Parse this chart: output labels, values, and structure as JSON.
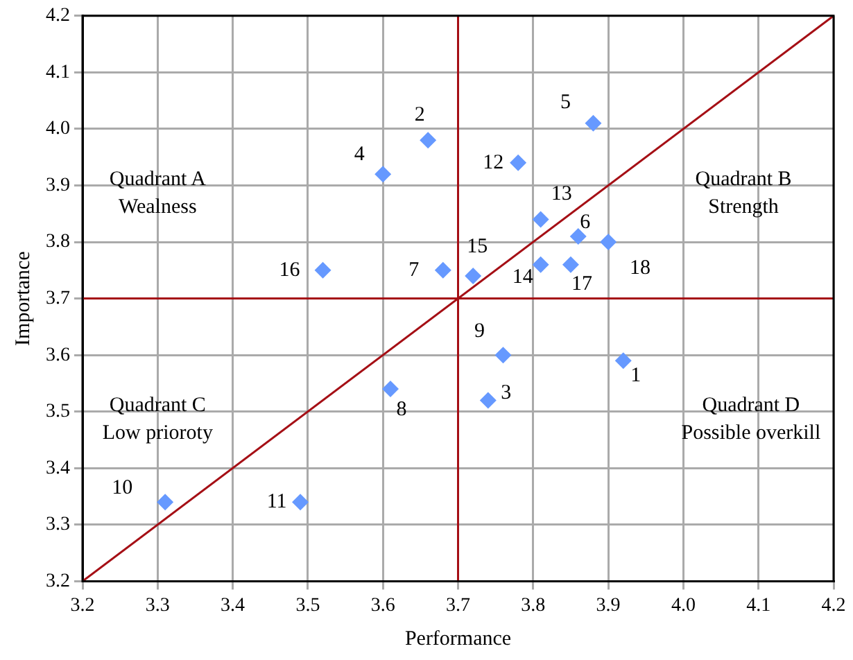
{
  "chart_data": {
    "type": "scatter",
    "xlabel": "Performance",
    "ylabel": "Importance",
    "xlim": [
      3.2,
      4.2
    ],
    "xticks": [
      3.2,
      3.3,
      3.4,
      3.5,
      3.6,
      3.7,
      3.8,
      3.9,
      {
        "value": 4,
        "label": "4.0"
      },
      4.1,
      4.2
    ],
    "ylim": [
      3.2,
      4.2
    ],
    "yticks": [
      3.2,
      3.3,
      3.4,
      3.5,
      3.6,
      3.7,
      3.8,
      3.9,
      {
        "value": 4,
        "label": "4.0"
      },
      4.1,
      4.2
    ],
    "grid": true,
    "legend": false,
    "series": [
      {
        "color": "#6699ff",
        "marker": "diamond",
        "x": [
          3.92,
          3.66,
          3.74,
          3.6,
          3.88,
          3.86,
          3.68,
          3.61,
          3.76,
          3.31,
          3.49,
          3.78,
          3.81,
          3.81,
          3.72,
          3.52,
          3.85,
          3.9
        ],
        "values": [
          3.59,
          3.98,
          3.52,
          3.92,
          4.01,
          3.81,
          3.75,
          3.54,
          3.6,
          3.34,
          3.34,
          3.94,
          3.84,
          3.76,
          3.74,
          3.75,
          3.76,
          3.8
        ]
      },
      {
        "type": "line",
        "color": "#a50f15",
        "marker": "none",
        "x": [
          3.2,
          4.2
        ],
        "values": [
          3.2,
          4.2
        ]
      },
      {
        "type": "line",
        "color": "#a50f15",
        "marker": "none",
        "x": [
          3.2,
          4.2
        ],
        "values": [
          3.7,
          3.7
        ]
      },
      {
        "type": "line",
        "color": "#a50f15",
        "marker": "none",
        "x": [
          3.7,
          3.7
        ],
        "values": [
          3.2,
          4.2
        ]
      }
    ],
    "annotations": [
      "Quadrant A\nWealness",
      "Quadrant B\nStrength",
      "Quadrant C\nLow prioroty",
      "Quadrant D\nPossible overkill",
      {
        "text": "1",
        "x": 3.92,
        "y": 3.59
      },
      {
        "text": "2",
        "x": 3.66,
        "y": 3.98
      },
      {
        "text": "3",
        "x": 3.74,
        "y": 3.52
      },
      {
        "text": "4",
        "x": 3.6,
        "y": 3.92
      },
      {
        "text": "5",
        "x": 3.88,
        "y": 4.01
      },
      {
        "text": "6",
        "x": 3.86,
        "y": 3.81
      },
      {
        "text": "7",
        "x": 3.68,
        "y": 3.75
      },
      {
        "text": "8",
        "x": 3.61,
        "y": 3.54
      },
      {
        "text": "9",
        "x": 3.76,
        "y": 3.6
      },
      {
        "text": "10",
        "x": 3.31,
        "y": 3.34
      },
      {
        "text": "11",
        "x": 3.49,
        "y": 3.34
      },
      {
        "text": "12",
        "x": 3.78,
        "y": 3.94
      },
      {
        "text": "13",
        "x": 3.81,
        "y": 3.84
      },
      {
        "text": "14",
        "x": 3.81,
        "y": 3.76
      },
      {
        "text": "15",
        "x": 3.72,
        "y": 3.74
      },
      {
        "text": "16",
        "x": 3.52,
        "y": 3.75
      },
      {
        "text": "17",
        "x": 3.85,
        "y": 3.76
      },
      {
        "text": "18",
        "x": 3.9,
        "y": 3.8
      }
    ]
  }
}
